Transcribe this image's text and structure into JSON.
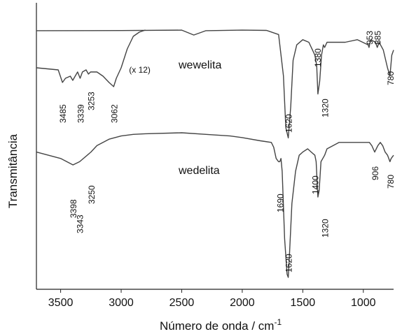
{
  "chart_data": {
    "type": "line",
    "title": "",
    "xlabel": "Número de onda / cm",
    "xlabel_superscript": "-1",
    "ylabel": "Transmitância",
    "xlim": [
      3700,
      750
    ],
    "x_reversed": true,
    "yticks_shown": false,
    "grid": false,
    "xticks": [
      3500,
      3000,
      2500,
      2000,
      1500,
      1000
    ],
    "series": [
      {
        "name": "wewelita",
        "points": [
          [
            3700,
            0.5
          ],
          [
            3000,
            0.45
          ],
          [
            2500,
            0.3
          ],
          [
            2400,
            2.2
          ],
          [
            2300,
            0.5
          ],
          [
            2000,
            0.3
          ],
          [
            1800,
            0.4
          ],
          [
            1700,
            2.0
          ],
          [
            1660,
            18
          ],
          [
            1640,
            38
          ],
          [
            1620,
            42
          ],
          [
            1600,
            30
          ],
          [
            1580,
            12
          ],
          [
            1550,
            6
          ],
          [
            1500,
            4
          ],
          [
            1450,
            5
          ],
          [
            1420,
            8
          ],
          [
            1400,
            10
          ],
          [
            1385,
            14
          ],
          [
            1375,
            25
          ],
          [
            1360,
            20
          ],
          [
            1345,
            10
          ],
          [
            1330,
            6
          ],
          [
            1320,
            7
          ],
          [
            1300,
            5
          ],
          [
            1250,
            5
          ],
          [
            1150,
            5
          ],
          [
            1050,
            4
          ],
          [
            960,
            6
          ],
          [
            953,
            7
          ],
          [
            940,
            4
          ],
          [
            900,
            5
          ],
          [
            885,
            7
          ],
          [
            870,
            5
          ],
          [
            835,
            8
          ],
          [
            800,
            15
          ],
          [
            780,
            18
          ],
          [
            765,
            10
          ],
          [
            750,
            8
          ]
        ]
      },
      {
        "name": "wewelita (x 12)",
        "points": [
          [
            3700,
            3
          ],
          [
            3520,
            4
          ],
          [
            3485,
            10
          ],
          [
            3460,
            8
          ],
          [
            3420,
            7
          ],
          [
            3400,
            9
          ],
          [
            3380,
            7
          ],
          [
            3360,
            5
          ],
          [
            3339,
            8
          ],
          [
            3320,
            5
          ],
          [
            3290,
            4
          ],
          [
            3270,
            6
          ],
          [
            3253,
            5
          ],
          [
            3230,
            5
          ],
          [
            3200,
            5
          ],
          [
            3150,
            7
          ],
          [
            3100,
            10
          ],
          [
            3062,
            12
          ],
          [
            3040,
            8
          ],
          [
            3000,
            3
          ],
          [
            2950,
            -6
          ],
          [
            2900,
            -12
          ],
          [
            2850,
            -14
          ],
          [
            2800,
            -15
          ]
        ]
      },
      {
        "name": "wedelita",
        "points": [
          [
            3700,
            6
          ],
          [
            3600,
            7
          ],
          [
            3500,
            8
          ],
          [
            3398,
            10
          ],
          [
            3343,
            9
          ],
          [
            3250,
            6
          ],
          [
            3200,
            4
          ],
          [
            3100,
            2
          ],
          [
            3000,
            1
          ],
          [
            2900,
            0.5
          ],
          [
            2800,
            0.3
          ],
          [
            2500,
            0
          ],
          [
            2300,
            0.5
          ],
          [
            2100,
            1
          ],
          [
            2000,
            1.5
          ],
          [
            1850,
            2.5
          ],
          [
            1760,
            3
          ],
          [
            1740,
            4.5
          ],
          [
            1720,
            8
          ],
          [
            1700,
            9
          ],
          [
            1690,
            9
          ],
          [
            1680,
            8
          ],
          [
            1670,
            12
          ],
          [
            1650,
            33
          ],
          [
            1630,
            44
          ],
          [
            1620,
            45
          ],
          [
            1610,
            38
          ],
          [
            1590,
            22
          ],
          [
            1560,
            12
          ],
          [
            1530,
            7
          ],
          [
            1500,
            6
          ],
          [
            1460,
            5
          ],
          [
            1430,
            6
          ],
          [
            1400,
            7
          ],
          [
            1390,
            9
          ],
          [
            1375,
            20
          ],
          [
            1365,
            18
          ],
          [
            1350,
            9
          ],
          [
            1320,
            7
          ],
          [
            1300,
            5
          ],
          [
            1250,
            4
          ],
          [
            1200,
            3
          ],
          [
            1100,
            3
          ],
          [
            1000,
            3
          ],
          [
            950,
            3
          ],
          [
            930,
            4
          ],
          [
            906,
            6
          ],
          [
            880,
            4
          ],
          [
            860,
            3
          ],
          [
            840,
            4
          ],
          [
            820,
            6
          ],
          [
            800,
            7
          ],
          [
            780,
            9
          ],
          [
            770,
            8
          ],
          [
            750,
            7
          ]
        ]
      }
    ],
    "annotations": {
      "wewelita": [
        "1380",
        "953",
        "885",
        "780",
        "1620",
        "1320"
      ],
      "wewelita_x12": [
        "3485",
        "3339",
        "3253",
        "3062",
        "(x 12)"
      ],
      "wedelita": [
        "3398",
        "3343",
        "3250",
        "1690",
        "1400",
        "906",
        "780",
        "1620",
        "1320"
      ]
    }
  }
}
